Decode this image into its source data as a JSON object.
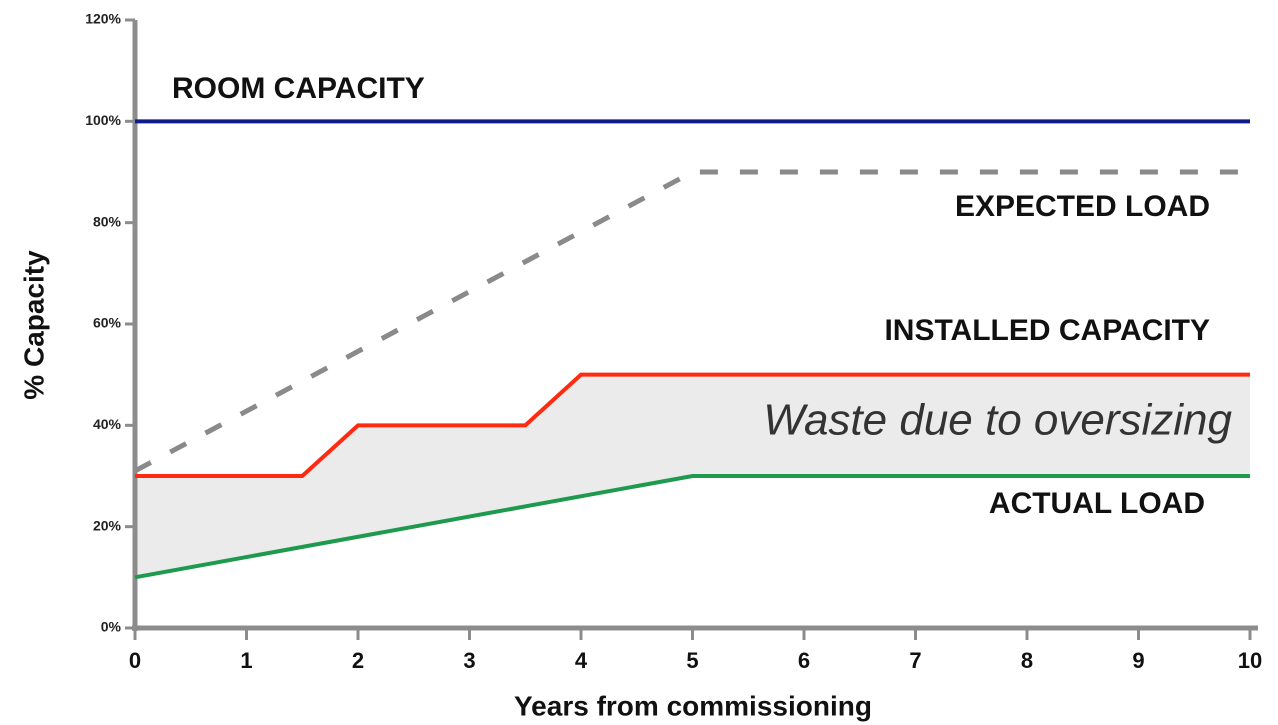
{
  "chart_data": {
    "type": "line",
    "x_label": "Years from commissioning",
    "y_label": "% Capacity",
    "annotation": "Waste due to oversizing",
    "xlim": [
      0,
      10
    ],
    "xticks": [
      0,
      1,
      2,
      3,
      4,
      5,
      6,
      7,
      8,
      9,
      10
    ],
    "ylim": [
      0,
      120
    ],
    "yticks": [
      {
        "value": 0,
        "label": "0%"
      },
      {
        "value": 20,
        "label": "20%"
      },
      {
        "value": 40,
        "label": "40%"
      },
      {
        "value": 60,
        "label": "60%"
      },
      {
        "value": 80,
        "label": "80%"
      },
      {
        "value": 100,
        "label": "100%"
      },
      {
        "value": 120,
        "label": "120%"
      }
    ],
    "series": [
      {
        "name": "ROOM CAPACITY",
        "color": "#0d1a8a",
        "line_style": "solid",
        "x": [
          0,
          10
        ],
        "values": [
          100,
          100
        ]
      },
      {
        "name": "EXPECTED LOAD",
        "color": "#8a8a8a",
        "line_style": "dashed",
        "x": [
          0,
          5,
          10
        ],
        "values": [
          31,
          90,
          90
        ]
      },
      {
        "name": "INSTALLED CAPACITY",
        "color": "#ff2a10",
        "line_style": "solid",
        "x": [
          0,
          1.5,
          2,
          3.5,
          4,
          10
        ],
        "values": [
          30,
          30,
          40,
          40,
          50,
          50
        ]
      },
      {
        "name": "ACTUAL LOAD",
        "color": "#1e9a4e",
        "line_style": "solid",
        "x": [
          0,
          5,
          10
        ],
        "values": [
          10,
          30,
          30
        ]
      }
    ]
  }
}
